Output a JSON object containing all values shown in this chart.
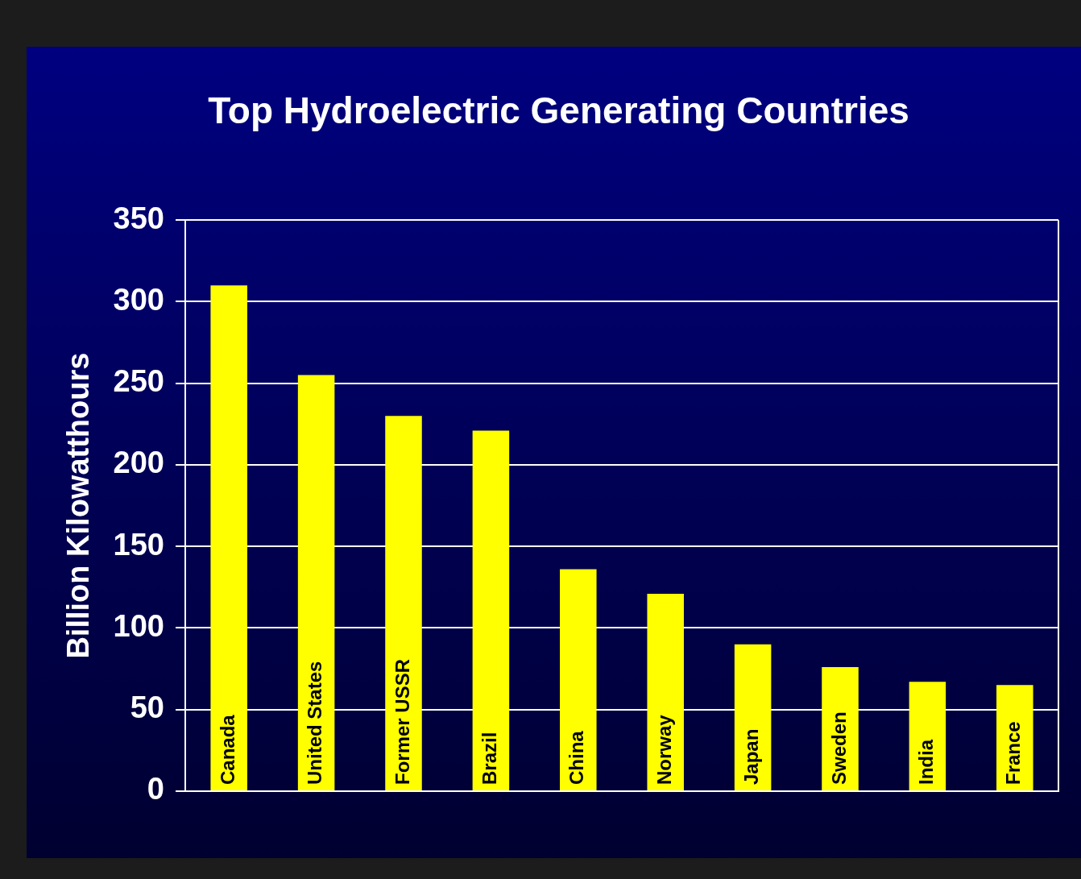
{
  "chart_data": {
    "type": "bar",
    "title": "Top Hydroelectric Generating Countries",
    "ylabel": "Billion Kilowatthours",
    "categories": [
      "Canada",
      "United States",
      "Former USSR",
      "Brazil",
      "China",
      "Norway",
      "Japan",
      "Sweden",
      "India",
      "France"
    ],
    "values": [
      310,
      255,
      230,
      221,
      136,
      121,
      90,
      76,
      67,
      65
    ],
    "color": "#ffff00",
    "ylim": [
      0,
      350
    ],
    "yticks": [
      0,
      50,
      100,
      150,
      200,
      250,
      300,
      350
    ],
    "grid": "y",
    "tick_labels": "y"
  }
}
